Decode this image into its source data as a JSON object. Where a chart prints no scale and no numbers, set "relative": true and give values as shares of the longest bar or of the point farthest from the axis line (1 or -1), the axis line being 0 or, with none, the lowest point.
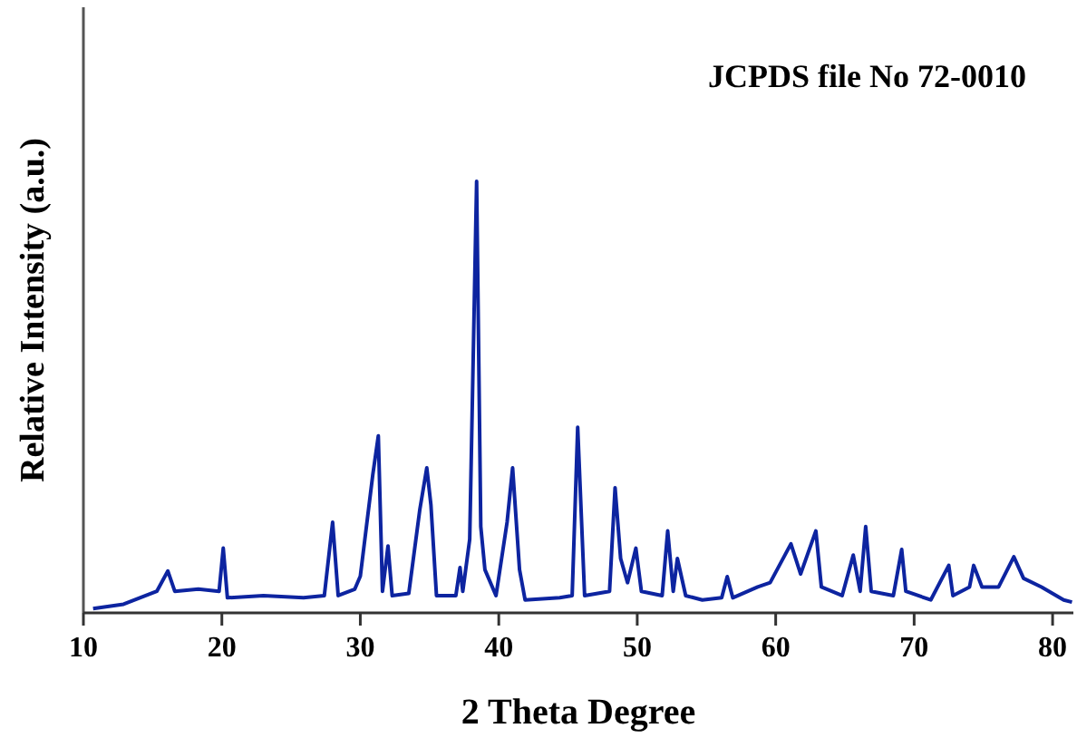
{
  "chart_data": {
    "type": "line",
    "relative": true,
    "xlabel": "2 Theta Degree",
    "ylabel": "Relative Intensity (a.u.)",
    "annotations": [
      "JCPDS file No 72-0010"
    ],
    "xlim": [
      10,
      81.5
    ],
    "xticks": [
      10,
      20,
      30,
      40,
      50,
      60,
      70,
      80
    ],
    "tick_labels": "x",
    "grid": false,
    "marker": "none",
    "line_style": "solid",
    "series": [
      {
        "color": "#0d24a0",
        "x": [
          10.7,
          12.9,
          15.3,
          16.1,
          16.6,
          18.3,
          19.8,
          20.1,
          20.4,
          23.0,
          25.9,
          27.4,
          28.0,
          28.4,
          29.6,
          30.0,
          30.9,
          31.3,
          31.6,
          32.0,
          32.3,
          33.5,
          34.3,
          34.8,
          35.1,
          35.5,
          36.9,
          37.2,
          37.4,
          37.9,
          38.4,
          38.7,
          39.0,
          39.8,
          40.6,
          41.0,
          41.5,
          41.9,
          44.4,
          45.3,
          45.7,
          46.2,
          48.0,
          48.4,
          48.8,
          49.3,
          49.9,
          50.3,
          51.8,
          52.2,
          52.6,
          52.9,
          53.5,
          54.7,
          56.1,
          56.5,
          56.9,
          58.7,
          59.6,
          61.1,
          61.5,
          61.8,
          62.9,
          63.3,
          64.8,
          65.6,
          66.1,
          66.5,
          66.9,
          68.5,
          69.1,
          69.4,
          71.2,
          72.5,
          72.8,
          74.0,
          74.3,
          74.9,
          76.1,
          77.2,
          77.9,
          79.2,
          80.8,
          81.4
        ],
        "values": [
          0.01,
          0.02,
          0.05,
          0.097,
          0.05,
          0.055,
          0.05,
          0.15,
          0.035,
          0.04,
          0.035,
          0.04,
          0.21,
          0.04,
          0.055,
          0.085,
          0.32,
          0.41,
          0.05,
          0.155,
          0.04,
          0.045,
          0.24,
          0.336,
          0.25,
          0.04,
          0.04,
          0.105,
          0.05,
          0.17,
          1.0,
          0.2,
          0.1,
          0.04,
          0.21,
          0.336,
          0.1,
          0.03,
          0.035,
          0.04,
          0.43,
          0.04,
          0.05,
          0.29,
          0.126,
          0.07,
          0.15,
          0.05,
          0.04,
          0.19,
          0.05,
          0.126,
          0.04,
          0.03,
          0.035,
          0.084,
          0.035,
          0.06,
          0.07,
          0.16,
          0.12,
          0.09,
          0.19,
          0.06,
          0.04,
          0.134,
          0.05,
          0.2,
          0.05,
          0.04,
          0.147,
          0.05,
          0.03,
          0.11,
          0.04,
          0.06,
          0.11,
          0.06,
          0.06,
          0.13,
          0.08,
          0.06,
          0.03,
          0.025
        ]
      }
    ]
  }
}
